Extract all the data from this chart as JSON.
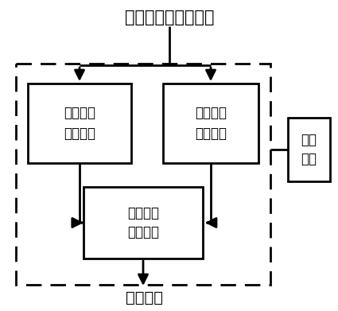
{
  "title": "互感线圈次级侧信号",
  "output_label": "输出信号",
  "box1_label": "第一信号\n调理模块",
  "box2_label": "第二信号\n调理模块",
  "box3_label": "信号综合\n调理模块",
  "box4_label": "供电\n模块",
  "bg_color": "#ffffff",
  "box_edge_color": "#000000",
  "dashed_box_color": "#000000",
  "arrow_color": "#000000",
  "text_color": "#000000",
  "font_size_title": 15,
  "font_size_box": 12,
  "font_size_label": 14
}
